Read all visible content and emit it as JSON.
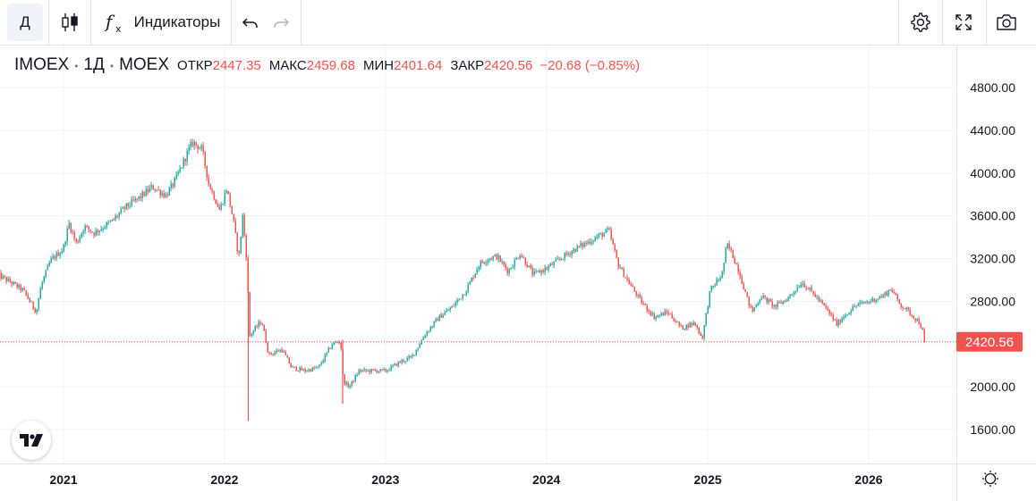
{
  "toolbar": {
    "interval": "Д",
    "indicators_label": "Индикаторы",
    "icons": [
      "candles-icon",
      "fx-icon",
      "undo-icon",
      "redo-icon",
      "gear-icon",
      "fullscreen-icon",
      "camera-icon"
    ]
  },
  "legend": {
    "symbol": "IMOEX",
    "interval": "1Д",
    "exchange": "MOEX",
    "open_label": "ОТКР",
    "open": "2447.35",
    "high_label": "МАКС",
    "high": "2459.68",
    "low_label": "МИН",
    "low": "2401.64",
    "close_label": "ЗАКР",
    "close": "2420.56",
    "change": "−20.68 (−0.85%)"
  },
  "colors": {
    "up": "#26a69a",
    "down": "#ef5350",
    "grid": "#f0f3fa",
    "price_line": "#ef5350"
  },
  "chart_data": {
    "type": "candlestick",
    "title": "",
    "x_ticks": [
      "2021",
      "2022",
      "2023",
      "2024",
      "2025",
      "2026"
    ],
    "y_ticks": [
      "1600.00",
      "2000.00",
      "2400.00",
      "2800.00",
      "3200.00",
      "3600.00",
      "4000.00",
      "4400.00",
      "4800.00"
    ],
    "ylim": [
      1400,
      5000
    ],
    "last_price_label": "2420.56",
    "last_price": 2420.56,
    "grid": true,
    "series": [
      {
        "name": "IMOEX",
        "points": [
          [
            "2020-08-03",
            3050
          ],
          [
            "2020-09-01",
            2980
          ],
          [
            "2020-10-01",
            2900
          ],
          [
            "2020-10-30",
            2700
          ],
          [
            "2020-11-10",
            2950
          ],
          [
            "2020-12-01",
            3180
          ],
          [
            "2020-12-30",
            3290
          ],
          [
            "2021-01-12",
            3530
          ],
          [
            "2021-01-29",
            3340
          ],
          [
            "2021-02-16",
            3500
          ],
          [
            "2021-03-10",
            3440
          ],
          [
            "2021-04-01",
            3500
          ],
          [
            "2021-04-20",
            3550
          ],
          [
            "2021-05-20",
            3680
          ],
          [
            "2021-06-21",
            3770
          ],
          [
            "2021-07-20",
            3870
          ],
          [
            "2021-08-20",
            3790
          ],
          [
            "2021-09-10",
            3930
          ],
          [
            "2021-10-10",
            4210
          ],
          [
            "2021-10-20",
            4290
          ],
          [
            "2021-11-10",
            4220
          ],
          [
            "2021-11-25",
            3900
          ],
          [
            "2021-12-10",
            3750
          ],
          [
            "2021-12-20",
            3650
          ],
          [
            "2022-01-05",
            3860
          ],
          [
            "2022-01-20",
            3550
          ],
          [
            "2022-02-01",
            3200
          ],
          [
            "2022-02-10",
            3600
          ],
          [
            "2022-02-21",
            3100
          ],
          [
            "2022-02-24",
            2470
          ],
          [
            "2022-03-25",
            2620
          ],
          [
            "2022-04-10",
            2300
          ],
          [
            "2022-05-10",
            2350
          ],
          [
            "2022-06-01",
            2180
          ],
          [
            "2022-07-01",
            2150
          ],
          [
            "2022-08-01",
            2180
          ],
          [
            "2022-09-01",
            2400
          ],
          [
            "2022-09-20",
            2430
          ],
          [
            "2022-09-26",
            2050
          ],
          [
            "2022-10-10",
            2000
          ],
          [
            "2022-11-01",
            2150
          ],
          [
            "2022-12-01",
            2150
          ],
          [
            "2023-01-01",
            2150
          ],
          [
            "2023-02-01",
            2230
          ],
          [
            "2023-03-01",
            2280
          ],
          [
            "2023-04-01",
            2500
          ],
          [
            "2023-05-01",
            2650
          ],
          [
            "2023-06-01",
            2750
          ],
          [
            "2023-07-01",
            2900
          ],
          [
            "2023-08-01",
            3150
          ],
          [
            "2023-08-20",
            3200
          ],
          [
            "2023-09-10",
            3220
          ],
          [
            "2023-10-05",
            3080
          ],
          [
            "2023-11-01",
            3250
          ],
          [
            "2023-12-01",
            3050
          ],
          [
            "2024-01-01",
            3110
          ],
          [
            "2024-02-01",
            3200
          ],
          [
            "2024-03-01",
            3280
          ],
          [
            "2024-04-01",
            3350
          ],
          [
            "2024-05-15",
            3450
          ],
          [
            "2024-05-20",
            3470
          ],
          [
            "2024-06-10",
            3150
          ],
          [
            "2024-07-01",
            3000
          ],
          [
            "2024-08-01",
            2800
          ],
          [
            "2024-09-01",
            2650
          ],
          [
            "2024-10-01",
            2700
          ],
          [
            "2024-11-01",
            2550
          ],
          [
            "2024-12-01",
            2600
          ],
          [
            "2024-12-18",
            2450
          ],
          [
            "2025-01-05",
            2900
          ],
          [
            "2025-02-01",
            3050
          ],
          [
            "2025-02-12",
            3330
          ],
          [
            "2025-02-20",
            3280
          ],
          [
            "2025-03-10",
            3100
          ],
          [
            "2025-04-01",
            2800
          ],
          [
            "2025-04-10",
            2700
          ],
          [
            "2025-05-01",
            2850
          ],
          [
            "2025-06-01",
            2750
          ],
          [
            "2025-07-01",
            2830
          ],
          [
            "2025-08-01",
            2980
          ],
          [
            "2025-09-01",
            2850
          ],
          [
            "2025-10-01",
            2700
          ],
          [
            "2025-10-20",
            2580
          ],
          [
            "2025-11-01",
            2650
          ],
          [
            "2025-12-01",
            2760
          ],
          [
            "2026-01-01",
            2800
          ],
          [
            "2026-02-01",
            2850
          ],
          [
            "2026-02-20",
            2920
          ],
          [
            "2026-03-10",
            2780
          ],
          [
            "2026-04-01",
            2700
          ],
          [
            "2026-04-25",
            2600
          ],
          [
            "2026-05-08",
            2447.35
          ]
        ]
      }
    ]
  }
}
